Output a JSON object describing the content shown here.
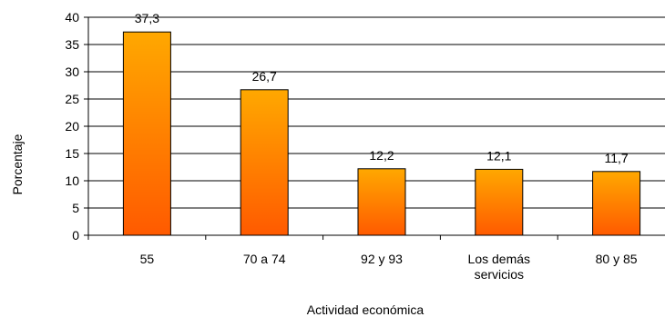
{
  "chart_data": {
    "type": "bar",
    "title": "",
    "xlabel": "Actividad económica",
    "ylabel": "Porcentaje",
    "ylim": [
      0,
      40
    ],
    "yticks": [
      0,
      5,
      10,
      15,
      20,
      25,
      30,
      35,
      40
    ],
    "grid": true,
    "legend": "none",
    "categories": [
      [
        "55"
      ],
      [
        "70 a 74"
      ],
      [
        "92 y 93"
      ],
      [
        "Los demás",
        "servicios"
      ],
      [
        "80 y 85"
      ]
    ],
    "values": [
      37.3,
      26.7,
      12.2,
      12.1,
      11.7
    ],
    "data_labels": [
      "37,3",
      "26,7",
      "12,2",
      "12,1",
      "11,7"
    ],
    "colors": {
      "bar_top": "#FFA800",
      "bar_bottom": "#FF5A00",
      "bar_stroke": "#000000",
      "grid": "#000000"
    }
  }
}
